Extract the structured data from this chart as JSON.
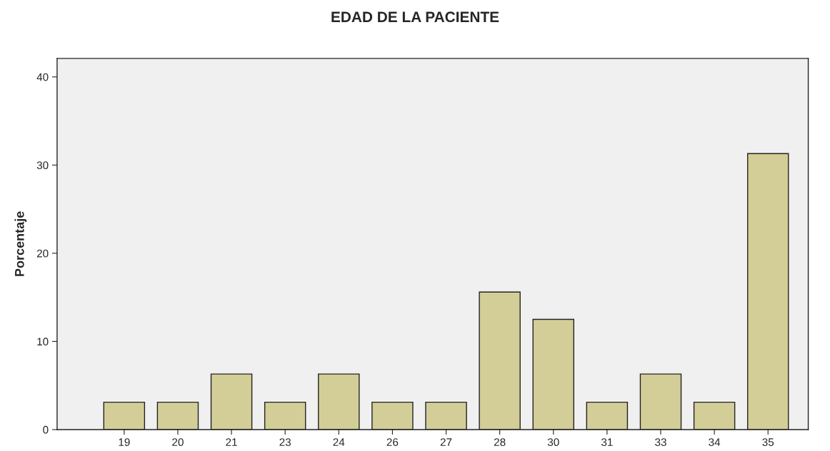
{
  "chart_data": {
    "type": "bar",
    "title": "EDAD DE LA PACIENTE",
    "ylabel": "Porcentaje",
    "categories": [
      "19",
      "20",
      "21",
      "23",
      "24",
      "26",
      "27",
      "28",
      "30",
      "31",
      "33",
      "34",
      "35"
    ],
    "values": [
      3.1,
      3.1,
      6.3,
      3.1,
      6.3,
      3.1,
      3.1,
      15.6,
      12.5,
      3.1,
      6.3,
      3.1,
      31.3
    ],
    "color": "#d3ce97",
    "ylim": [
      0,
      42.1
    ],
    "yticks": [
      0,
      10,
      20,
      30,
      40
    ],
    "grid": false,
    "legend": false
  }
}
